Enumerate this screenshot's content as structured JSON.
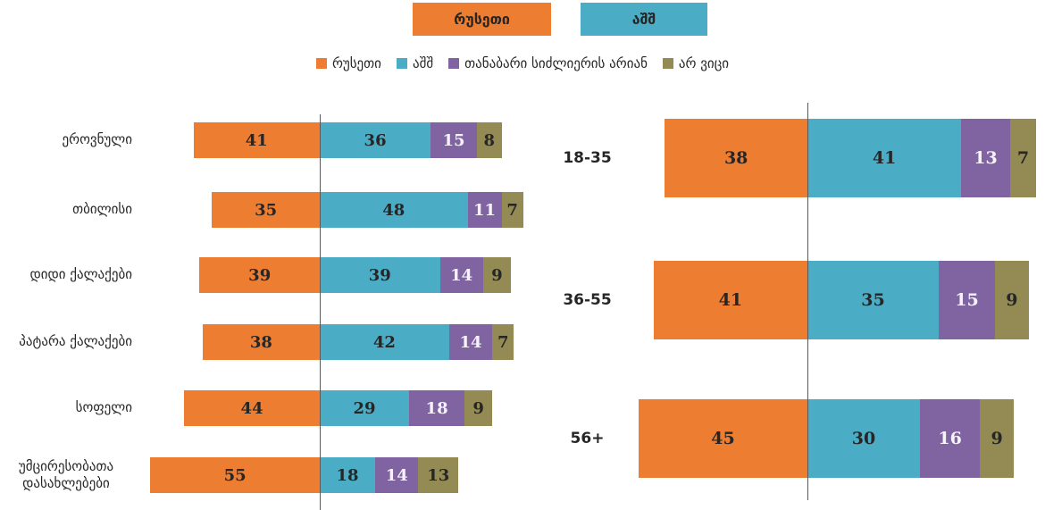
{
  "banner": {
    "items": [
      {
        "label": "რუსეთი",
        "color": "#ED7D31"
      },
      {
        "label": "აშშ",
        "color": "#4AACC5"
      }
    ]
  },
  "legend": {
    "items": [
      {
        "label": "რუსეთი",
        "color": "#ED7D31"
      },
      {
        "label": "აშშ",
        "color": "#4AACC5"
      },
      {
        "label": "თანაბარი სიძლიერის არიან",
        "color": "#8064A2"
      },
      {
        "label": "არ ვიცი",
        "color": "#948A54"
      }
    ]
  },
  "colors": {
    "orange": "#ED7D31",
    "blue": "#4AACC5",
    "purple": "#8064A2",
    "olive": "#948A54",
    "axis": "#595959",
    "text_dark": "#262626",
    "text_light": "#F5F2F9"
  },
  "chart_data": [
    {
      "type": "bar",
      "orientation": "horizontal",
      "stacked": true,
      "units": "percent",
      "legend_position": "top",
      "baseline_note": "first series right-aligned to vertical baseline, remaining series extend right",
      "categories": [
        "ეროვნული",
        "თბილისი",
        "დიდი ქალაქები",
        "პატარა ქალაქები",
        "სოფელი",
        "უმცირესობათა დასახლებები"
      ],
      "series": [
        {
          "name": "რუსეთი",
          "color": "#ED7D31",
          "label_color": "#262626",
          "values": [
            41,
            35,
            39,
            38,
            44,
            55
          ]
        },
        {
          "name": "აშშ",
          "color": "#4AACC5",
          "label_color": "#262626",
          "values": [
            36,
            48,
            39,
            42,
            29,
            18
          ]
        },
        {
          "name": "თანაბარი სიძლიერის არიან",
          "color": "#8064A2",
          "label_color": "#F5F2F9",
          "values": [
            15,
            11,
            14,
            14,
            18,
            14
          ]
        },
        {
          "name": "არ ვიცი",
          "color": "#948A54",
          "label_color": "#262626",
          "values": [
            8,
            7,
            9,
            7,
            9,
            13
          ]
        }
      ]
    },
    {
      "type": "bar",
      "orientation": "horizontal",
      "stacked": true,
      "units": "percent",
      "legend_position": "top",
      "baseline_note": "first series right-aligned to vertical baseline, remaining series extend right",
      "categories": [
        "18-35",
        "36-55",
        "56+"
      ],
      "series": [
        {
          "name": "რუსეთი",
          "color": "#ED7D31",
          "label_color": "#262626",
          "values": [
            38,
            41,
            45
          ]
        },
        {
          "name": "აშშ",
          "color": "#4AACC5",
          "label_color": "#262626",
          "values": [
            41,
            35,
            30
          ]
        },
        {
          "name": "თანაბარი სიძლიერის არიან",
          "color": "#8064A2",
          "label_color": "#F5F2F9",
          "values": [
            13,
            15,
            16
          ]
        },
        {
          "name": "არ ვიცი",
          "color": "#948A54",
          "label_color": "#262626",
          "values": [
            7,
            9,
            9
          ]
        }
      ]
    }
  ]
}
